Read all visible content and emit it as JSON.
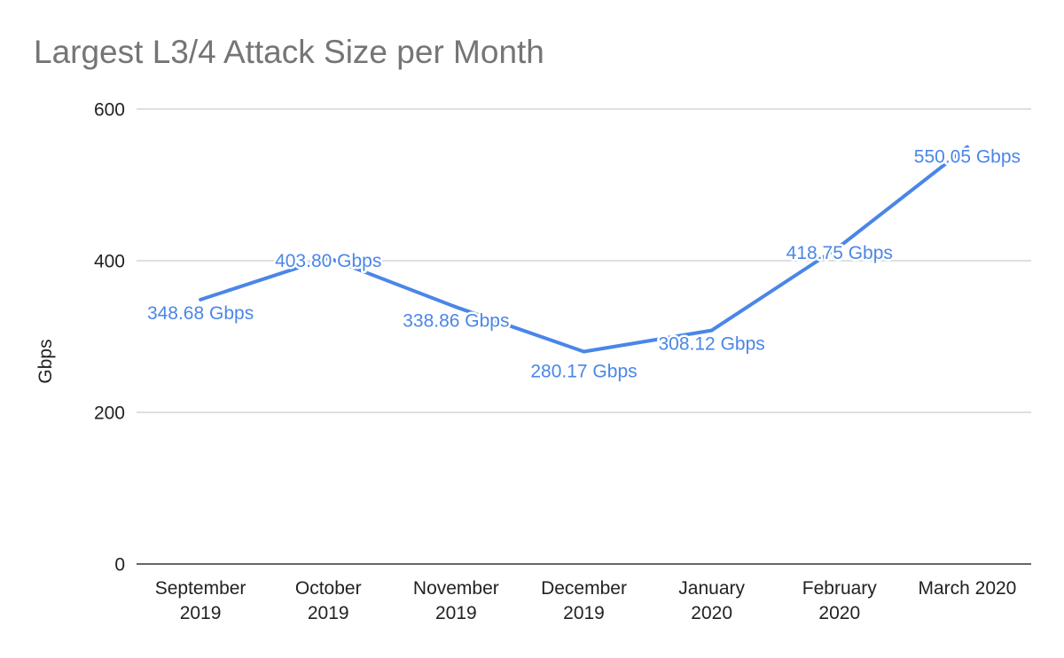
{
  "chart_data": {
    "type": "line",
    "title": "Largest L3/4 Attack Size per Month",
    "xlabel": "",
    "ylabel": "Gbps",
    "categories": [
      [
        "September",
        "2019"
      ],
      [
        "October",
        "2019"
      ],
      [
        "November",
        "2019"
      ],
      [
        "December",
        "2019"
      ],
      [
        "January",
        "2020"
      ],
      [
        "February",
        "2020"
      ],
      [
        "March 2020"
      ]
    ],
    "series": [
      {
        "values": [
          348.68,
          403.8,
          338.86,
          280.17,
          308.12,
          418.75,
          550.05
        ],
        "data_labels": [
          "348.68 Gbps",
          "403.80 Gbps",
          "338.86 Gbps",
          "280.17 Gbps",
          "308.12 Gbps",
          "418.75 Gbps",
          "550.05 Gbps"
        ],
        "color": "#4a86e8"
      }
    ],
    "ylim": [
      0,
      600
    ],
    "yticks": [
      0,
      200,
      400,
      600
    ],
    "grid": true,
    "legend": "none"
  }
}
